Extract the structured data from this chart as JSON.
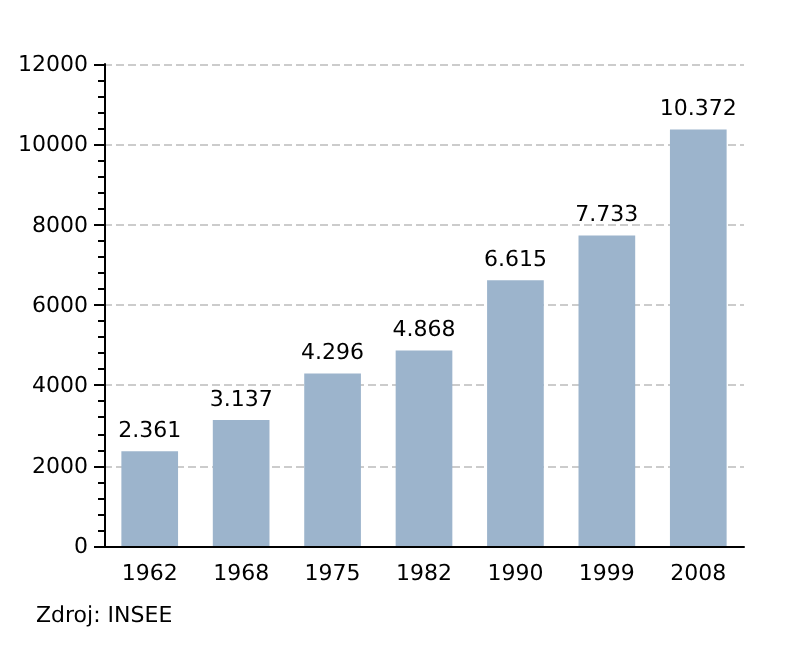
{
  "chart_data": {
    "type": "bar",
    "categories": [
      "1962",
      "1968",
      "1975",
      "1982",
      "1990",
      "1999",
      "2008"
    ],
    "values": [
      2361,
      3137,
      4296,
      4868,
      6615,
      7733,
      10372
    ],
    "value_labels": [
      "2.361",
      "3.137",
      "4.296",
      "4.868",
      "6.615",
      "7.733",
      "10.372"
    ],
    "color": "#9cb4cc",
    "ylim": [
      0,
      12000
    ],
    "yticks": [
      0,
      2000,
      4000,
      6000,
      8000,
      10000,
      12000
    ],
    "grid": "y",
    "annotations": [
      "Zdroj: INSEE"
    ]
  }
}
